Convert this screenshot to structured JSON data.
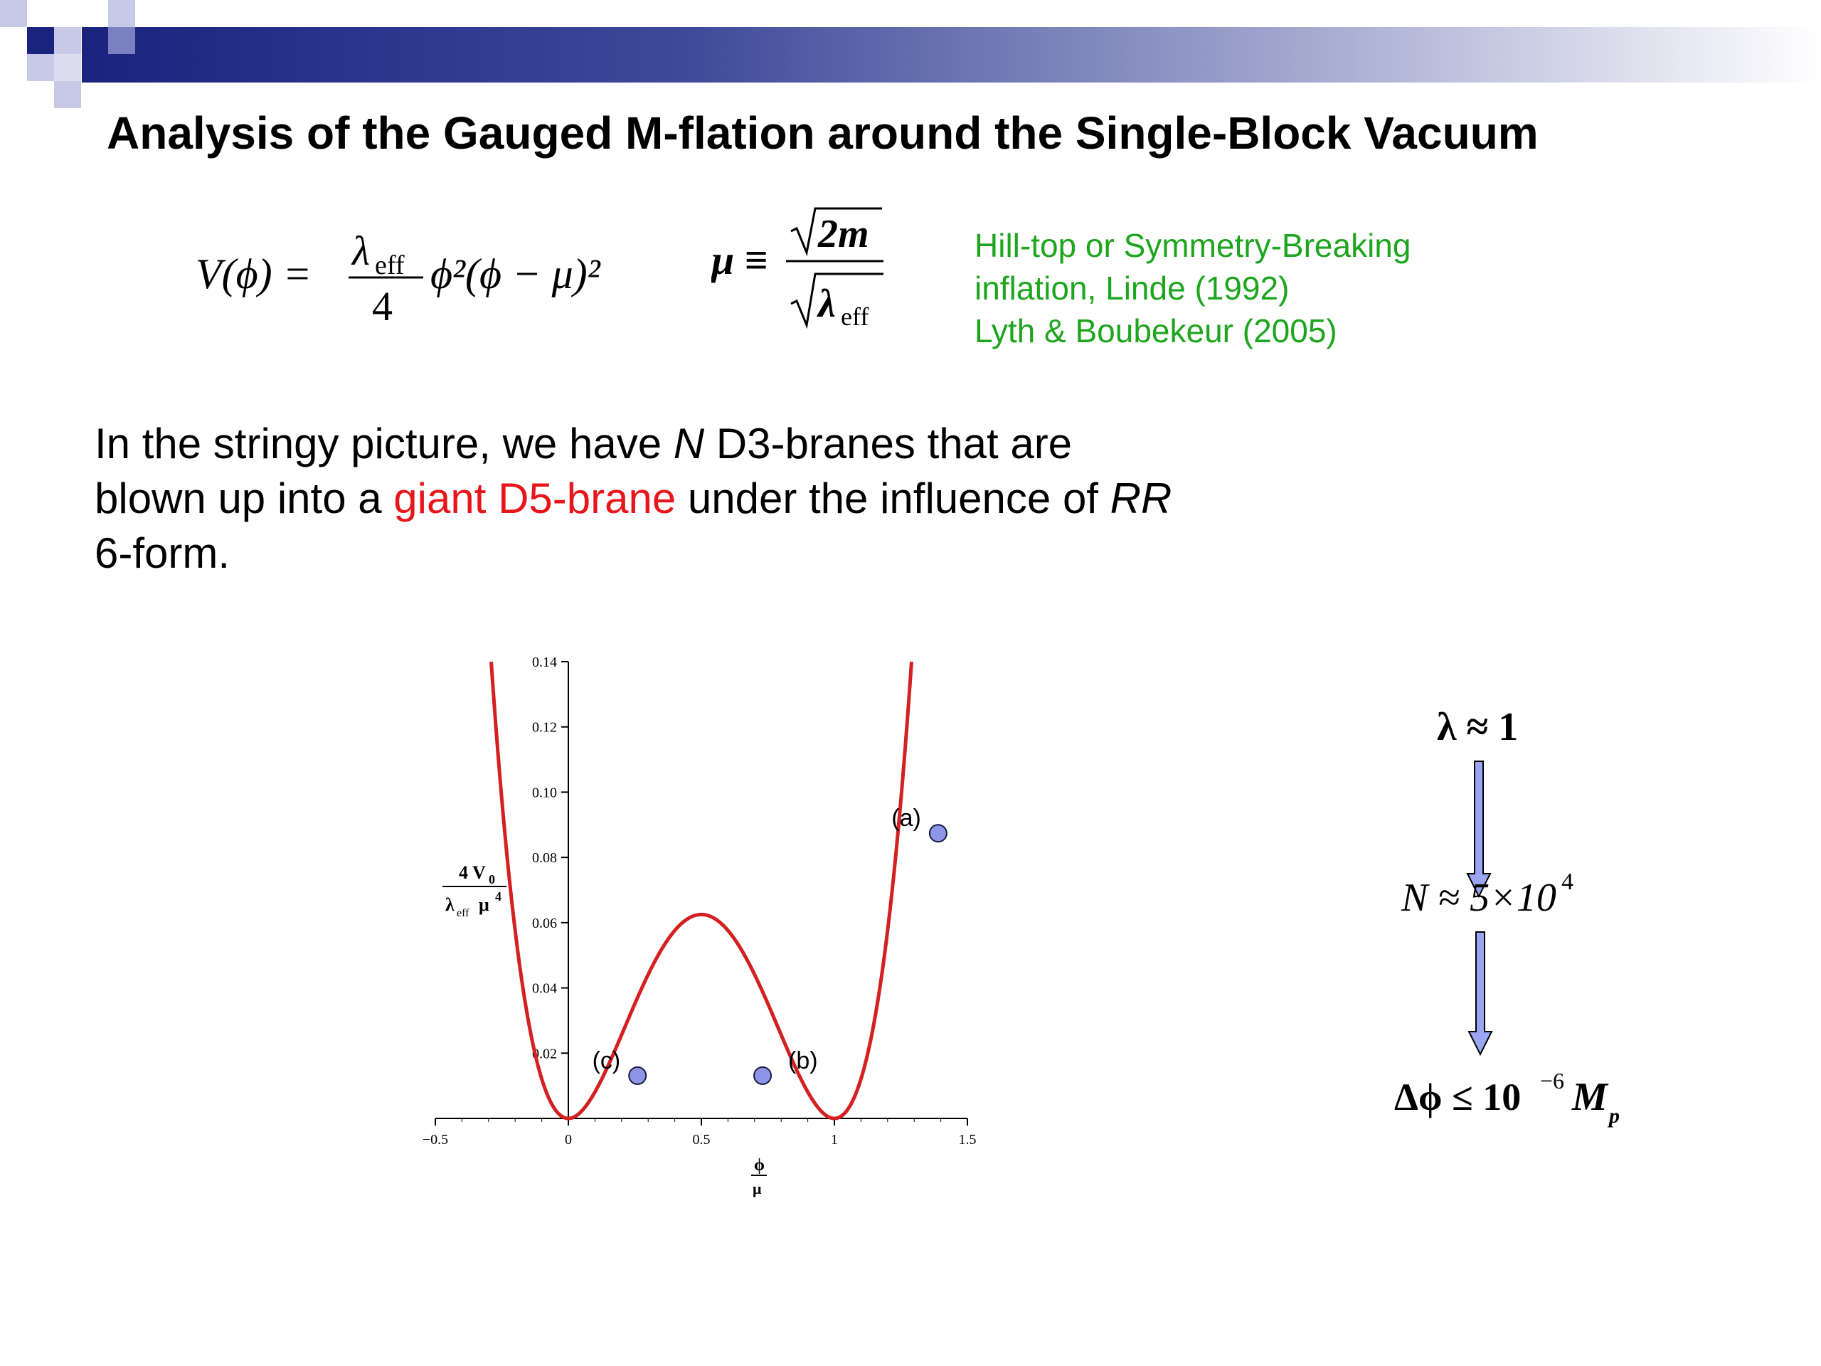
{
  "title": "Analysis of the Gauged M-flation around the Single-Block Vacuum",
  "formulas": {
    "potential": {
      "lhs": "V(ϕ) =",
      "num": "λ",
      "num_sub": "eff",
      "den": "4",
      "rhs": "ϕ²(ϕ − μ)²"
    },
    "mu_def": {
      "lhs": "μ ≡",
      "num": "2m",
      "den": "λ",
      "den_sub": "eff"
    }
  },
  "reference": [
    "Hill-top or Symmetry-Breaking",
    "inflation,  Linde (1992)",
    "Lyth & Boubekeur (2005)"
  ],
  "body": {
    "l1a": "In the stringy picture, we have ",
    "l1b": "N",
    "l1c": " D3-branes that are",
    "l2a": "blown up into a ",
    "l2b": "giant D5-brane",
    "l2c": " under the influence of ",
    "l2d": "RR",
    "l3": "6-form."
  },
  "flow": {
    "step1": "λ ≈ 1",
    "step2_base": "N ≈ 5×10",
    "step2_exp": "4",
    "step3_base": "Δϕ ≤ 10",
    "step3_exp": "−6",
    "step3_M": "M",
    "step3_sub": "p"
  },
  "colors": {
    "curve": "#d42020",
    "marker_fill": "#8f95e6",
    "arrow_fill": "#9aa6f2",
    "reference_text": "#1ea51e",
    "highlight_text": "#e8151b"
  },
  "chart_data": {
    "type": "line",
    "function": "(x^2)*(x-1)^2",
    "xlim": [
      -0.5,
      1.5
    ],
    "ylim": [
      0,
      0.14
    ],
    "x_ticks": [
      -0.5,
      0,
      0.5,
      1,
      1.5
    ],
    "x_tick_labels": [
      "−0.5",
      "0",
      "0.5",
      "1",
      "1.5"
    ],
    "y_ticks": [
      0.02,
      0.04,
      0.06,
      0.08,
      0.1,
      0.12,
      0.14
    ],
    "y_tick_labels": [
      "0.02",
      "0.04",
      "0.06",
      "0.08",
      "0.10",
      "0.12",
      "0.14"
    ],
    "xlabel_num": "ϕ",
    "xlabel_den": "μ",
    "ylabel_num": "4 V",
    "ylabel_num_sub": "0",
    "ylabel_den": "λ",
    "ylabel_den_sub": "eff",
    "ylabel_den_mu": "μ",
    "ylabel_den_sup": "4",
    "grid": false,
    "points": [
      {
        "label": "(a)",
        "x": 1.39,
        "y": 0.0874
      },
      {
        "label": "(b)",
        "x": 0.73,
        "y": 0.0131
      },
      {
        "label": "(c)",
        "x": 0.26,
        "y": 0.0131
      }
    ]
  }
}
